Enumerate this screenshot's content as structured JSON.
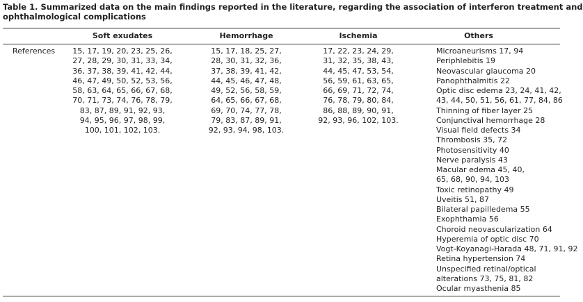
{
  "title": [
    "Table 1. Summarized data on the main findings reported in the literature, regarding the association of interferon treatment and",
    "ophthalmological complications"
  ],
  "table": {
    "header": [
      "Soft exudates",
      "Hemorrhage",
      "Ischemia",
      "Others"
    ],
    "row_label": "References",
    "cells": [
      [
        "15, 17, 19, 20, 23, 25, 26,",
        "27, 28, 29, 30, 31, 33, 34,",
        "36, 37, 38, 39, 41, 42, 44,",
        "46, 47, 49, 50, 52, 53, 56,",
        "58, 63, 64, 65, 66, 67, 68,",
        "70, 71, 73, 74, 76, 78, 79,",
        "83, 87, 89, 91, 92, 93,",
        "94, 95, 96, 97, 98, 99,",
        "100, 101, 102, 103."
      ],
      [
        "15, 17, 18, 25, 27,",
        "28, 30, 31, 32, 36,",
        "37, 38, 39, 41, 42,",
        "44, 45, 46, 47, 48,",
        "49, 52, 56, 58, 59,",
        "64, 65, 66, 67, 68,",
        "69, 70, 74, 77, 78,",
        "79, 83, 87, 89, 91,",
        "92, 93, 94, 98, 103."
      ],
      [
        "17, 22, 23, 24, 29,",
        "31, 32, 35, 38, 43,",
        "44, 45, 47, 53, 54,",
        "56, 59, 61, 63, 65,",
        "66, 69, 71, 72, 74,",
        "76, 78, 79, 80, 84,",
        "86, 88, 89, 90, 91,",
        "92, 93, 96, 102, 103."
      ],
      [
        "Microaneurisms 17, 94",
        "Periphlebitis 19",
        "Neovascular glaucoma 20",
        "Panophthalmitis 22",
        "Optic disc edema 23, 24, 41, 42,",
        "43, 44, 50, 51, 56, 61, 77, 84, 86",
        "Thinning of fiber layer 25",
        "Conjunctival hemorrhage 28",
        "Visual field defects 34",
        "Thrombosis 35, 72",
        "Photosensitivity 40",
        "Nerve paralysis 43",
        "Macular edema 45, 40,",
        "65, 68, 90, 94, 103",
        "Toxic retinopathy 49",
        "Uveitis 51, 87",
        "Bilateral papilledema 55",
        "Exophthamia 56",
        "Choroid neovascularization 64",
        "Hyperemia of optic disc 70",
        "Vogt-Koyanagi-Harada 48, 71, 91, 92",
        "Retina hypertension 74",
        "Unspecified retinal/optical",
        "alterations 73, 75, 81, 82",
        "Ocular myasthenia 85"
      ]
    ]
  }
}
